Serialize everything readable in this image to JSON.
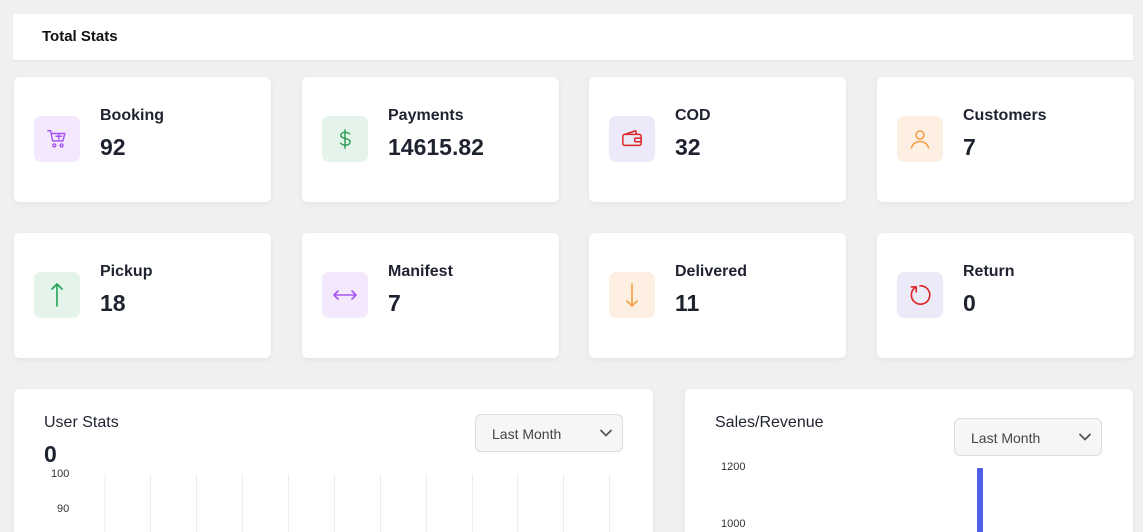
{
  "header": {
    "title": "Total Stats"
  },
  "stats": [
    {
      "label": "Booking",
      "value": "92",
      "icon": "cart-icon",
      "bg": "#f3e8fc",
      "color": "#a855f7"
    },
    {
      "label": "Payments",
      "value": "14615.82",
      "icon": "dollar-icon",
      "bg": "#e4f4ea",
      "color": "#2e9d55"
    },
    {
      "label": "COD",
      "value": "32",
      "icon": "wallet-icon",
      "bg": "#eceaf8",
      "color": "#dc2626"
    },
    {
      "label": "Customers",
      "value": "7",
      "icon": "user-icon",
      "bg": "#fdf0e3",
      "color": "#f59e42"
    },
    {
      "label": "Pickup",
      "value": "18",
      "icon": "arrow-up-icon",
      "bg": "#e4f4ea",
      "color": "#22a455"
    },
    {
      "label": "Manifest",
      "value": "7",
      "icon": "arrow-left-right-icon",
      "bg": "#f3e8fc",
      "color": "#a855f7"
    },
    {
      "label": "Delivered",
      "value": "11",
      "icon": "arrow-down-icon",
      "bg": "#fdf0e3",
      "color": "#f59e42"
    },
    {
      "label": "Return",
      "value": "0",
      "icon": "refresh-icon",
      "bg": "#eceaf8",
      "color": "#dc2626"
    }
  ],
  "user_stats": {
    "title": "User Stats",
    "total": "0",
    "filter": "Last Month",
    "y_ticks": [
      "100",
      "90"
    ]
  },
  "sales": {
    "title": "Sales/Revenue",
    "filter": "Last Month",
    "y_ticks": [
      "1200",
      "1000"
    ],
    "bar_color": "#4f5fe8"
  }
}
